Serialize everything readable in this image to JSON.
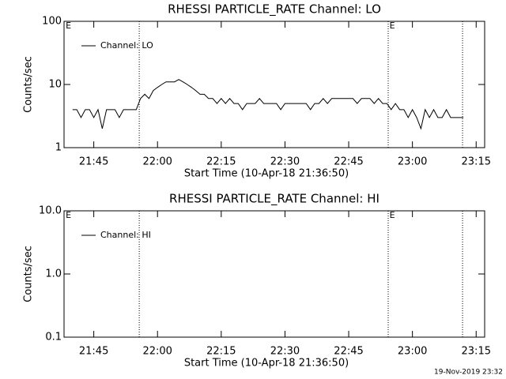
{
  "chart_data": [
    {
      "type": "line",
      "title": "RHESSI PARTICLE_RATE Channel: LO",
      "ylabel": "Counts/sec",
      "xlabel": "Start Time (10-Apr-18 21:36:50)",
      "log_y": true,
      "ylim": [
        1,
        100
      ],
      "yticks": [
        1,
        10,
        100
      ],
      "xlim": [
        1298,
        1397
      ],
      "xticks": [
        {
          "value": 1305,
          "label": "21:45"
        },
        {
          "value": 1320,
          "label": "22:00"
        },
        {
          "value": 1335,
          "label": "22:15"
        },
        {
          "value": 1350,
          "label": "22:30"
        },
        {
          "value": 1365,
          "label": "22:45"
        },
        {
          "value": 1380,
          "label": "23:00"
        },
        {
          "value": 1395,
          "label": "23:15"
        }
      ],
      "vlines": [
        1315.7,
        1374.3,
        1391.8
      ],
      "flags": [
        {
          "x": 1298.4,
          "label": "E"
        },
        {
          "x": 1374.6,
          "label": "E"
        }
      ],
      "x": [
        1300,
        1301,
        1302,
        1303,
        1304,
        1305,
        1306,
        1307,
        1308,
        1309,
        1310,
        1311,
        1312,
        1313,
        1314,
        1315,
        1316,
        1317,
        1318,
        1319,
        1320,
        1321,
        1322,
        1323,
        1324,
        1325,
        1326,
        1327,
        1328,
        1329,
        1330,
        1331,
        1332,
        1333,
        1334,
        1335,
        1336,
        1337,
        1338,
        1339,
        1340,
        1341,
        1342,
        1343,
        1344,
        1345,
        1346,
        1347,
        1348,
        1349,
        1350,
        1351,
        1352,
        1353,
        1354,
        1355,
        1356,
        1357,
        1358,
        1359,
        1360,
        1361,
        1362,
        1363,
        1364,
        1365,
        1366,
        1367,
        1368,
        1369,
        1370,
        1371,
        1372,
        1373,
        1374,
        1375,
        1376,
        1377,
        1378,
        1379,
        1380,
        1381,
        1382,
        1383,
        1384,
        1385,
        1386,
        1387,
        1388,
        1389,
        1390,
        1391,
        1392
      ],
      "series": [
        {
          "name": "Channel: LO",
          "color": "#000000",
          "values": [
            4,
            4,
            3,
            4,
            4,
            3,
            4,
            2,
            4,
            4,
            4,
            3,
            4,
            4,
            4,
            4,
            6,
            7,
            6,
            8,
            9,
            10,
            11,
            11,
            11,
            12,
            11,
            10,
            9,
            8,
            7,
            7,
            6,
            6,
            5,
            6,
            5,
            6,
            5,
            5,
            4,
            5,
            5,
            5,
            6,
            5,
            5,
            5,
            5,
            4,
            5,
            5,
            5,
            5,
            5,
            5,
            4,
            5,
            5,
            6,
            5,
            6,
            6,
            6,
            6,
            6,
            6,
            5,
            6,
            6,
            6,
            5,
            6,
            5,
            5,
            4,
            5,
            4,
            4,
            3,
            4,
            3,
            2,
            4,
            3,
            4,
            3,
            3,
            4,
            3,
            3,
            3,
            3
          ]
        }
      ]
    },
    {
      "type": "line",
      "title": "RHESSI PARTICLE_RATE Channel: HI",
      "ylabel": "Counts/sec",
      "xlabel": "Start Time (10-Apr-18 21:36:50)",
      "log_y": true,
      "ylim": [
        0.1,
        10
      ],
      "yticks": [
        0.1,
        {
          "value": 1,
          "label": "1.0"
        },
        {
          "value": 10,
          "label": "10.0"
        }
      ],
      "xlim": [
        1298,
        1397
      ],
      "xticks": [
        {
          "value": 1305,
          "label": "21:45"
        },
        {
          "value": 1320,
          "label": "22:00"
        },
        {
          "value": 1335,
          "label": "22:15"
        },
        {
          "value": 1350,
          "label": "22:30"
        },
        {
          "value": 1365,
          "label": "22:45"
        },
        {
          "value": 1380,
          "label": "23:00"
        },
        {
          "value": 1395,
          "label": "23:15"
        }
      ],
      "vlines": [
        1315.7,
        1374.3,
        1391.8
      ],
      "flags": [
        {
          "x": 1298.4,
          "label": "E"
        },
        {
          "x": 1374.6,
          "label": "E"
        }
      ],
      "x": [],
      "series": [
        {
          "name": "Channel: HI",
          "color": "#000000",
          "values": []
        }
      ]
    }
  ],
  "footer": "19-Nov-2019 23:32"
}
